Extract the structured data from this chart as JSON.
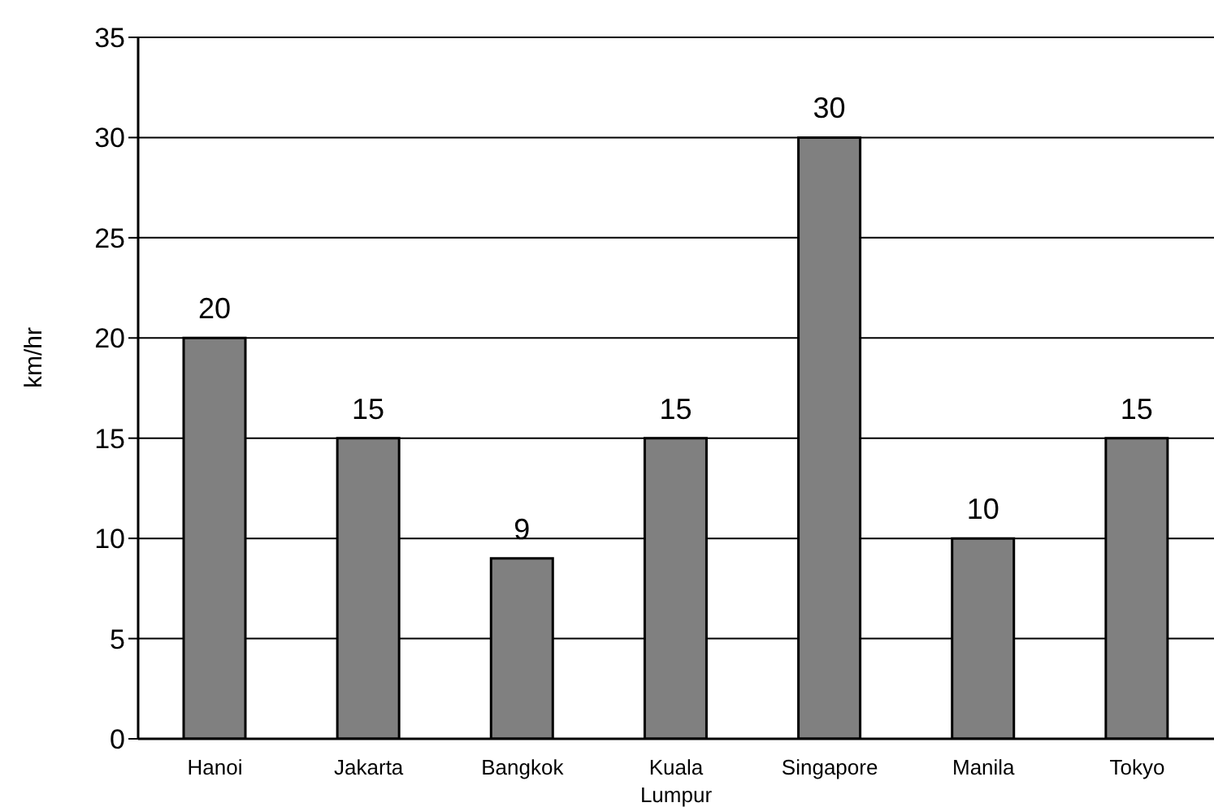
{
  "chart_data": {
    "type": "bar",
    "ylabel": "km/hr",
    "categories": [
      "Hanoi",
      "Jakarta",
      "Bangkok",
      "Kuala Lumpur",
      "Singapore",
      "Manila",
      "Tokyo"
    ],
    "values": [
      20,
      15,
      9,
      15,
      30,
      10,
      15
    ],
    "color": "#808080",
    "ylim": [
      0,
      35
    ],
    "yticks": [
      0,
      5,
      10,
      15,
      20,
      25,
      30,
      35
    ],
    "grid": "y",
    "data_labels": true,
    "legend": false
  }
}
